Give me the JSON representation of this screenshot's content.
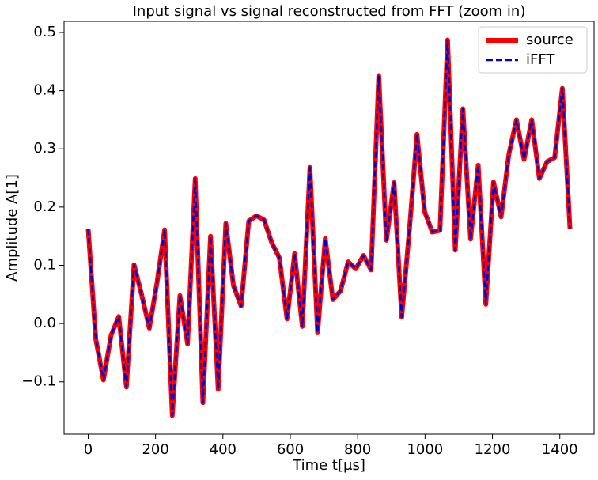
{
  "chart_data": {
    "type": "line",
    "title": "Input signal vs signal reconstructed from FFT (zoom in)",
    "xlabel": "Time t[μs]",
    "ylabel": "Amplitude A[1]",
    "x": [
      0,
      22.7,
      45.4,
      68.1,
      90.8,
      113.5,
      136.2,
      158.9,
      181.6,
      204.3,
      227,
      249.7,
      272.4,
      295.1,
      317.8,
      340.5,
      363.2,
      385.9,
      408.6,
      431.3,
      454,
      476.7,
      499.4,
      522.1,
      544.8,
      567.5,
      590.2,
      612.9,
      635.6,
      658.3,
      681,
      703.7,
      726.4,
      749.1,
      771.8,
      794.5,
      817.2,
      839.9,
      862.6,
      885.3,
      908,
      930.7,
      953.4,
      976.1,
      998.8,
      1021.5,
      1044.2,
      1066.9,
      1089.6,
      1112.3,
      1135,
      1157.7,
      1180.4,
      1203.1,
      1225.8,
      1248.5,
      1271.2,
      1293.9,
      1316.6,
      1339.3,
      1362,
      1384.7,
      1407.4,
      1430.1
    ],
    "series": [
      {
        "name": "source",
        "color": "#ff0000",
        "linestyle": "solid",
        "values": [
          0.163,
          -0.027,
          -0.097,
          -0.02,
          0.012,
          -0.109,
          0.101,
          0.049,
          -0.008,
          0.07,
          0.161,
          -0.158,
          0.048,
          -0.035,
          0.249,
          -0.136,
          0.15,
          -0.113,
          0.172,
          0.065,
          0.03,
          0.176,
          0.185,
          0.178,
          0.139,
          0.113,
          0.008,
          0.12,
          -0.005,
          0.268,
          -0.016,
          0.146,
          0.041,
          0.056,
          0.106,
          0.094,
          0.117,
          0.092,
          0.426,
          0.143,
          0.242,
          0.011,
          0.16,
          0.325,
          0.192,
          0.157,
          0.16,
          0.487,
          0.126,
          0.369,
          0.145,
          0.272,
          0.033,
          0.243,
          0.183,
          0.29,
          0.35,
          0.282,
          0.35,
          0.249,
          0.278,
          0.285,
          0.404,
          0.163
        ]
      },
      {
        "name": "iFFT",
        "color": "#0000cc",
        "linestyle": "dashed",
        "values": [
          0.163,
          -0.027,
          -0.097,
          -0.02,
          0.012,
          -0.109,
          0.101,
          0.049,
          -0.008,
          0.07,
          0.161,
          -0.158,
          0.048,
          -0.035,
          0.249,
          -0.136,
          0.15,
          -0.113,
          0.172,
          0.065,
          0.03,
          0.176,
          0.185,
          0.178,
          0.139,
          0.113,
          0.008,
          0.12,
          -0.005,
          0.268,
          -0.016,
          0.146,
          0.041,
          0.056,
          0.106,
          0.094,
          0.117,
          0.092,
          0.426,
          0.143,
          0.242,
          0.011,
          0.16,
          0.325,
          0.192,
          0.157,
          0.16,
          0.487,
          0.126,
          0.369,
          0.145,
          0.272,
          0.033,
          0.243,
          0.183,
          0.29,
          0.35,
          0.282,
          0.35,
          0.249,
          0.278,
          0.285,
          0.404,
          0.163
        ]
      }
    ],
    "xlim": [
      -71.5,
      1501.6
    ],
    "ylim": [
      -0.19,
      0.519
    ],
    "xticks": [
      0,
      200,
      400,
      600,
      800,
      1000,
      1200,
      1400
    ],
    "yticks": [
      {
        "value": -0.1,
        "label": "−0.1"
      },
      {
        "value": 0,
        "label": "0.0"
      },
      0.1,
      0.2,
      0.3,
      0.4,
      0.5
    ],
    "legend": "upper right",
    "grid": false
  }
}
